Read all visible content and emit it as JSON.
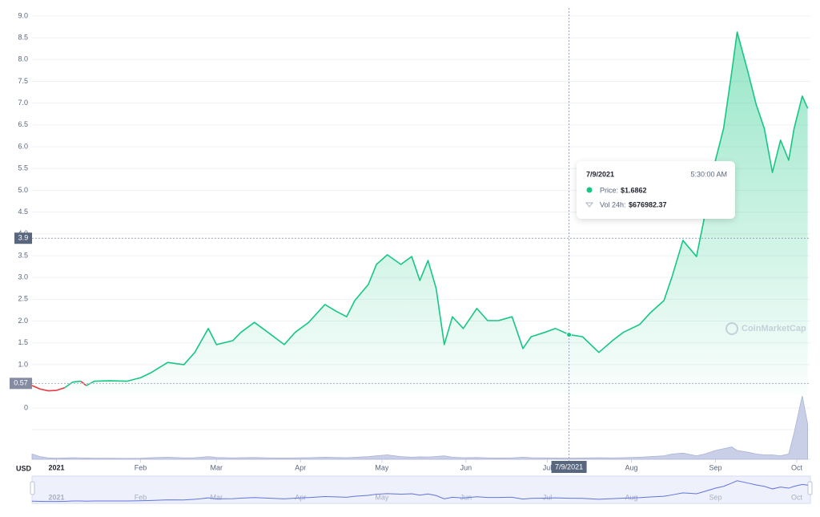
{
  "chart_data": {
    "type": "line",
    "currency": "USD",
    "watermark": "CoinMarketCap",
    "x": [
      -9,
      -6,
      -3,
      0,
      3,
      6,
      9,
      11,
      14,
      20,
      26,
      31,
      35,
      41,
      47,
      51,
      56,
      59,
      65,
      68,
      73,
      78,
      84,
      88,
      93,
      99,
      103,
      107,
      110,
      115,
      118,
      122,
      127,
      131,
      134,
      137,
      140,
      143,
      146,
      150,
      155,
      159,
      163,
      168,
      172,
      175,
      180,
      184,
      189,
      194,
      200,
      205,
      209,
      215,
      219,
      224,
      227,
      231,
      236,
      239,
      243,
      246,
      249,
      251,
      255,
      258,
      261,
      264,
      267,
      270,
      272,
      275,
      277
    ],
    "values": [
      0.52,
      0.44,
      0.4,
      0.41,
      0.47,
      0.6,
      0.62,
      0.52,
      0.62,
      0.63,
      0.62,
      0.7,
      0.82,
      1.05,
      1.0,
      1.28,
      1.83,
      1.46,
      1.55,
      1.74,
      1.97,
      1.74,
      1.46,
      1.74,
      1.97,
      2.38,
      2.23,
      2.1,
      2.47,
      2.84,
      3.3,
      3.52,
      3.3,
      3.48,
      2.93,
      3.39,
      2.75,
      1.46,
      2.1,
      1.83,
      2.29,
      2.01,
      2.01,
      2.1,
      1.37,
      1.64,
      1.74,
      1.83,
      1.69,
      1.64,
      1.28,
      1.55,
      1.74,
      1.92,
      2.19,
      2.47,
      3.02,
      3.85,
      3.48,
      4.4,
      5.69,
      6.42,
      7.71,
      8.63,
      7.71,
      6.97,
      6.42,
      5.41,
      6.15,
      5.69,
      6.42,
      7.16,
      6.88
    ],
    "volume": [
      3000000,
      1500000,
      800000,
      600000,
      700000,
      900000,
      800000,
      700000,
      600000,
      600000,
      500000,
      600000,
      900000,
      1200000,
      800000,
      900000,
      1500000,
      1000000,
      800000,
      900000,
      1000000,
      800000,
      700000,
      800000,
      900000,
      1200000,
      1000000,
      900000,
      1100000,
      1500000,
      2000000,
      2500000,
      1500000,
      1200000,
      1400000,
      1300000,
      1600000,
      2000000,
      1200000,
      900000,
      1000000,
      800000,
      700000,
      800000,
      1200000,
      900000,
      800000,
      700000,
      676982,
      700000,
      900000,
      800000,
      900000,
      1200000,
      1500000,
      2000000,
      3000000,
      3500000,
      2000000,
      3000000,
      5000000,
      6000000,
      7000000,
      5000000,
      4000000,
      3000000,
      2500000,
      2500000,
      2000000,
      3000000,
      15000000,
      36000000,
      20000000
    ],
    "volume_axis_label": "0",
    "volume_lim": [
      0,
      40000000
    ],
    "up_color": "#16c784",
    "down_color": "#ea3943",
    "reference_price": 0.57,
    "xlim": [
      -9,
      278
    ],
    "ylim": [
      0.3,
      9.2
    ],
    "xticks": [
      {
        "value": 0,
        "label": "2021"
      },
      {
        "value": 31,
        "label": "Feb"
      },
      {
        "value": 59,
        "label": "Mar"
      },
      {
        "value": 90,
        "label": "Apr"
      },
      {
        "value": 120,
        "label": "May"
      },
      {
        "value": 151,
        "label": "Jun"
      },
      {
        "value": 181,
        "label": "Jul"
      },
      {
        "value": 212,
        "label": "Aug"
      },
      {
        "value": 243,
        "label": "Sep"
      },
      {
        "value": 273,
        "label": "Oct"
      }
    ],
    "yticks": [
      {
        "value": 1,
        "label": "1.0"
      },
      {
        "value": 1.5,
        "label": "1.5"
      },
      {
        "value": 2,
        "label": "2.0"
      },
      {
        "value": 2.5,
        "label": "2.5"
      },
      {
        "value": 3,
        "label": "3.0"
      },
      {
        "value": 3.5,
        "label": "3.5"
      },
      {
        "value": 4,
        "label": "4.0"
      },
      {
        "value": 4.5,
        "label": "4.5"
      },
      {
        "value": 5,
        "label": "5.0"
      },
      {
        "value": 5.5,
        "label": "5.5"
      },
      {
        "value": 6,
        "label": "6.0"
      },
      {
        "value": 6.5,
        "label": "6.5"
      },
      {
        "value": 7,
        "label": "7.0"
      },
      {
        "value": 7.5,
        "label": "7.5"
      },
      {
        "value": 8,
        "label": "8.0"
      },
      {
        "value": 8.5,
        "label": "8.5"
      },
      {
        "value": 9,
        "label": "9.0"
      }
    ],
    "grid": true,
    "crosshair": {
      "x": 189,
      "y": 3.9,
      "x_label": "7/9/2021"
    },
    "tooltip": {
      "date": "7/9/2021",
      "time": "5:30:00 AM",
      "price_label": "Price:",
      "price": {
        "value": 1.6862,
        "label": "$1.6862"
      },
      "volume_label": "Vol 24h:",
      "volume": {
        "value": 676982.37,
        "label": "$676982.37"
      }
    }
  }
}
